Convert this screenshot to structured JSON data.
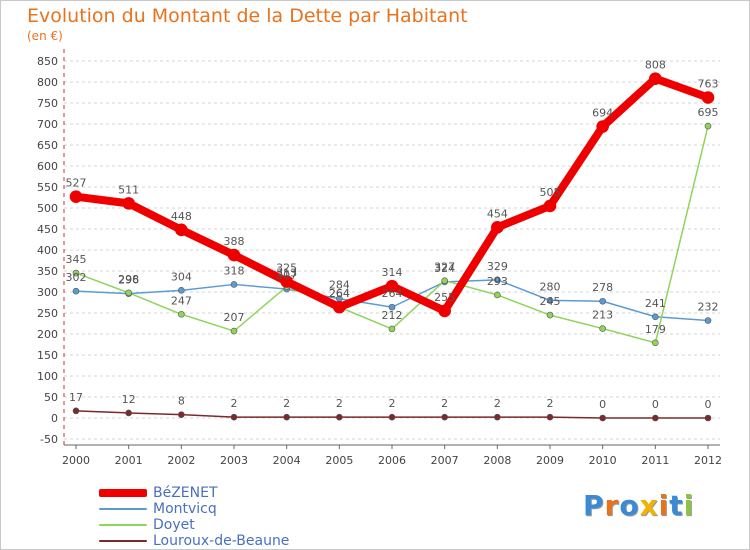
{
  "header": {
    "title": "Evolution du Montant de la Dette par Habitant",
    "subtitle": "(en €)"
  },
  "logo": {
    "text": "Proxiti",
    "colors": [
      "#3a8ad6",
      "#e8731e",
      "#3a8ad6",
      "#f0b400",
      "#e8731e",
      "#3a8ad6",
      "#8cc63e"
    ]
  },
  "chart_data": {
    "type": "line",
    "title": "Evolution du Montant de la Dette par Habitant",
    "subtitle": "(en €)",
    "x": [
      "2000",
      "2001",
      "2002",
      "2003",
      "2004",
      "2005",
      "2006",
      "2007",
      "2008",
      "2009",
      "2010",
      "2011",
      "2012"
    ],
    "ylim": [
      -50,
      850
    ],
    "yticks": [
      -50,
      0,
      50,
      100,
      150,
      200,
      250,
      300,
      350,
      400,
      450,
      500,
      550,
      600,
      650,
      700,
      750,
      800,
      850
    ],
    "grid": "horizontal-dashed",
    "legend_position": "bottom-left",
    "series": [
      {
        "name": "Montvicq",
        "color": "#5b9bd5",
        "width": 1.5,
        "values": [
          302,
          296,
          304,
          318,
          307,
          284,
          264,
          324,
          329,
          280,
          278,
          241,
          232
        ]
      },
      {
        "name": "Doyet",
        "color": "#8fd45b",
        "width": 1.5,
        "values": [
          345,
          298,
          247,
          207,
          313,
          264,
          212,
          327,
          293,
          245,
          213,
          179,
          695
        ]
      },
      {
        "name": "Louroux-de-Beaune",
        "color": "#7a2a2a",
        "width": 1.5,
        "values": [
          17,
          12,
          8,
          2,
          2,
          2,
          2,
          2,
          2,
          2,
          0,
          0,
          0
        ]
      },
      {
        "name": "BéZENET",
        "color": "#ee0000",
        "width": 8,
        "values": [
          527,
          511,
          448,
          388,
          325,
          264,
          314,
          255,
          454,
          505,
          694,
          808,
          763
        ]
      }
    ]
  }
}
